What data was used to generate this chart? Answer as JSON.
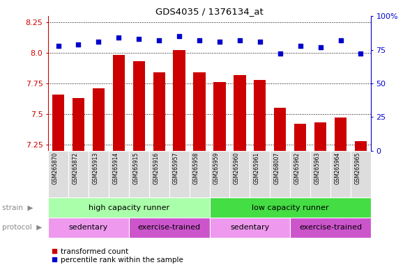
{
  "title": "GDS4035 / 1376134_at",
  "samples": [
    "GSM265870",
    "GSM265872",
    "GSM265913",
    "GSM265914",
    "GSM265915",
    "GSM265916",
    "GSM265957",
    "GSM265958",
    "GSM265959",
    "GSM265960",
    "GSM265961",
    "GSM268007",
    "GSM265962",
    "GSM265963",
    "GSM265964",
    "GSM265965"
  ],
  "bar_values": [
    7.66,
    7.63,
    7.71,
    7.98,
    7.93,
    7.84,
    8.02,
    7.84,
    7.76,
    7.82,
    7.78,
    7.55,
    7.42,
    7.43,
    7.47,
    7.28
  ],
  "dot_values": [
    78,
    79,
    81,
    84,
    83,
    82,
    85,
    82,
    81,
    82,
    81,
    72,
    78,
    77,
    82,
    72
  ],
  "ylim_left": [
    7.2,
    8.3
  ],
  "ylim_right": [
    0,
    100
  ],
  "yticks_left": [
    7.25,
    7.5,
    7.75,
    8.0,
    8.25
  ],
  "yticks_right": [
    0,
    25,
    50,
    75,
    100
  ],
  "bar_color": "#cc0000",
  "dot_color": "#0000cc",
  "bar_bottom": 7.2,
  "strain_labels": [
    {
      "label": "high capacity runner",
      "start": 0,
      "end": 7,
      "color": "#aaffaa"
    },
    {
      "label": "low capacity runner",
      "start": 8,
      "end": 15,
      "color": "#44dd44"
    }
  ],
  "protocol_labels": [
    {
      "label": "sedentary",
      "start": 0,
      "end": 3,
      "color": "#ee99ee"
    },
    {
      "label": "exercise-trained",
      "start": 4,
      "end": 7,
      "color": "#cc55cc"
    },
    {
      "label": "sedentary",
      "start": 8,
      "end": 11,
      "color": "#ee99ee"
    },
    {
      "label": "exercise-trained",
      "start": 12,
      "end": 15,
      "color": "#cc55cc"
    }
  ],
  "legend_items": [
    {
      "label": "transformed count",
      "color": "#cc0000"
    },
    {
      "label": "percentile rank within the sample",
      "color": "#0000cc"
    }
  ],
  "bg_color": "#ffffff",
  "grid_color": "#000000",
  "axis_label_color_left": "#cc0000",
  "axis_label_color_right": "#0000cc",
  "sample_area_color": "#cccccc",
  "sample_cell_color": "#dddddd"
}
